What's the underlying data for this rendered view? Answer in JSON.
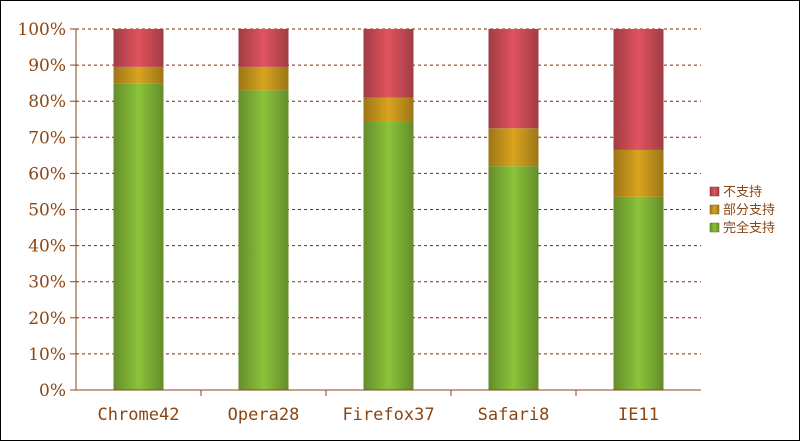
{
  "chart_data": {
    "type": "bar",
    "stacked": true,
    "percent_stacked": true,
    "categories": [
      "Chrome42",
      "Opera28",
      "Firefox37",
      "Safari8",
      "IE11"
    ],
    "series": [
      {
        "name": "完全支持",
        "color": "#8bc43a",
        "values": [
          85,
          83,
          74.5,
          62,
          53.5
        ]
      },
      {
        "name": "部分支持",
        "color": "#d9a41f",
        "values": [
          4.5,
          6.5,
          6.5,
          10.5,
          13
        ]
      },
      {
        "name": "不支持",
        "color": "#e0535f",
        "values": [
          10.5,
          10.5,
          19,
          27.5,
          33.5
        ]
      }
    ],
    "y_ticks": [
      "0%",
      "10%",
      "20%",
      "30%",
      "40%",
      "50%",
      "60%",
      "70%",
      "80%",
      "90%",
      "100%"
    ],
    "ylim": [
      0,
      100
    ],
    "grid": "horizontal dashed",
    "legend_position": "right",
    "legend_order": [
      "不支持",
      "部分支持",
      "完全支持"
    ],
    "axis_color": "#8b4513"
  }
}
